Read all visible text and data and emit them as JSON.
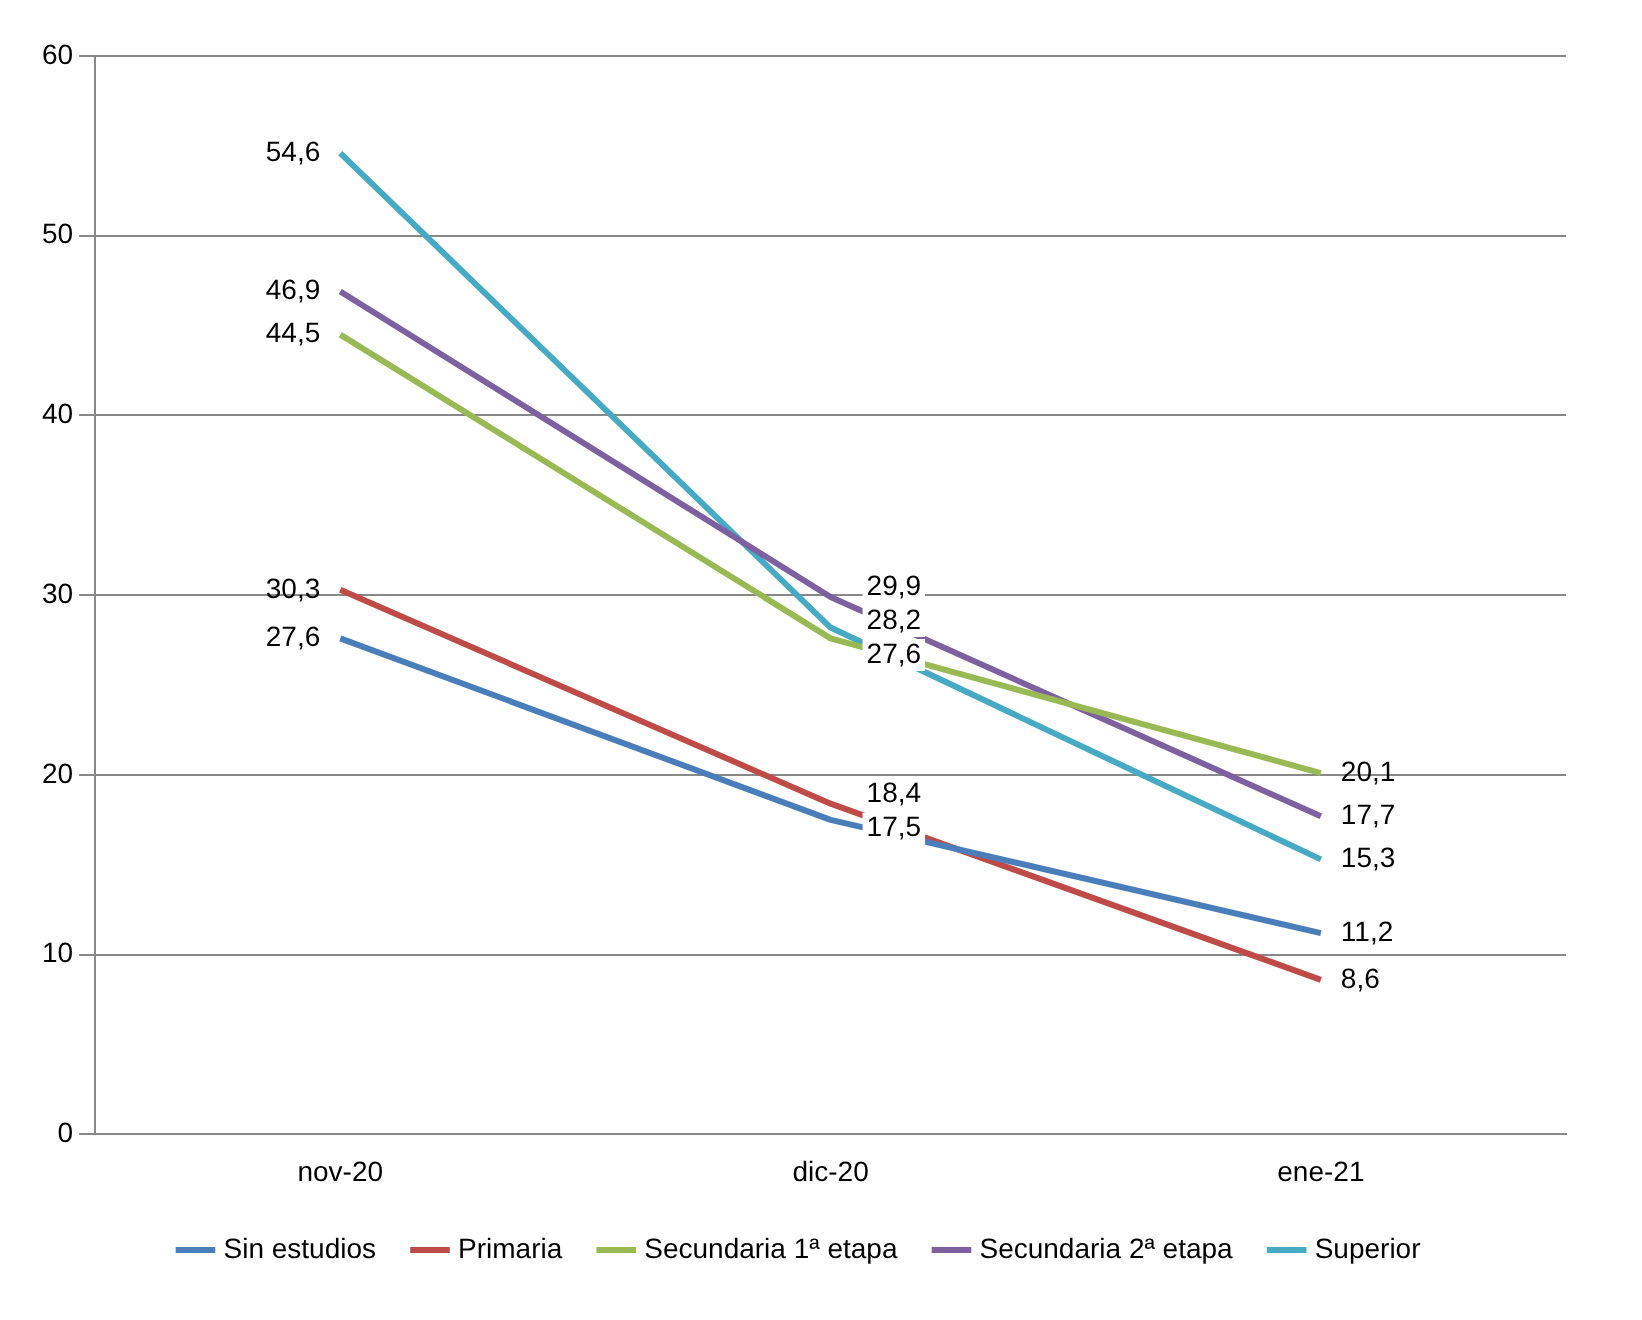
{
  "chart_data": {
    "type": "line",
    "categories": [
      "nov-20",
      "dic-20",
      "ene-21"
    ],
    "series": [
      {
        "name": "Sin estudios",
        "color": "#4a7ebb",
        "values": [
          27.6,
          17.5,
          11.2
        ],
        "value_labels": [
          "27,6",
          "17,5",
          "11,2"
        ]
      },
      {
        "name": "Primaria",
        "color": "#be4b48",
        "values": [
          30.3,
          18.4,
          8.6
        ],
        "value_labels": [
          "30,3",
          "18,4",
          "8,6"
        ]
      },
      {
        "name": "Secundaria 1ª etapa",
        "color": "#98b954",
        "values": [
          44.5,
          27.6,
          20.1
        ],
        "value_labels": [
          "44,5",
          "27,6",
          "20,1"
        ]
      },
      {
        "name": "Secundaria 2ª etapa",
        "color": "#7d60a0",
        "values": [
          46.9,
          29.9,
          17.7
        ],
        "value_labels": [
          "46,9",
          "29,9",
          "17,7"
        ]
      },
      {
        "name": "Superior",
        "color": "#46aac5",
        "values": [
          54.6,
          28.2,
          15.3
        ],
        "value_labels": [
          "54,6",
          "28,2",
          "15,3"
        ]
      }
    ],
    "ylim": [
      0,
      60
    ],
    "yticks": [
      0,
      10,
      20,
      30,
      40,
      50,
      60
    ],
    "grid": "y",
    "legend": "bottom",
    "marker": "none",
    "line_style": "solid"
  }
}
